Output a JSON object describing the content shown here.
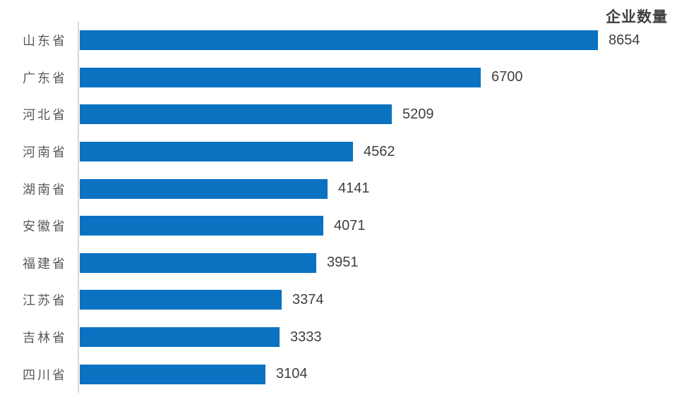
{
  "chart_data": {
    "type": "bar",
    "orientation": "horizontal",
    "title": "企业数量",
    "categories": [
      "山东省",
      "广东省",
      "河北省",
      "河南省",
      "湖南省",
      "安徽省",
      "福建省",
      "江苏省",
      "吉林省",
      "四川省"
    ],
    "values": [
      8654,
      6700,
      5209,
      4562,
      4141,
      4071,
      3951,
      3374,
      3333,
      3104
    ],
    "xlabel": "",
    "ylabel": "",
    "value_axis_range": [
      0,
      8654
    ],
    "grid": "off",
    "legend": "none",
    "data_labels": "outside-end"
  },
  "colors": {
    "bar": "#0b72c2",
    "category_label": "#595959",
    "value_label": "#404040",
    "title": "#404040",
    "axis_line": "#d9d9d9",
    "background": "#ffffff"
  }
}
